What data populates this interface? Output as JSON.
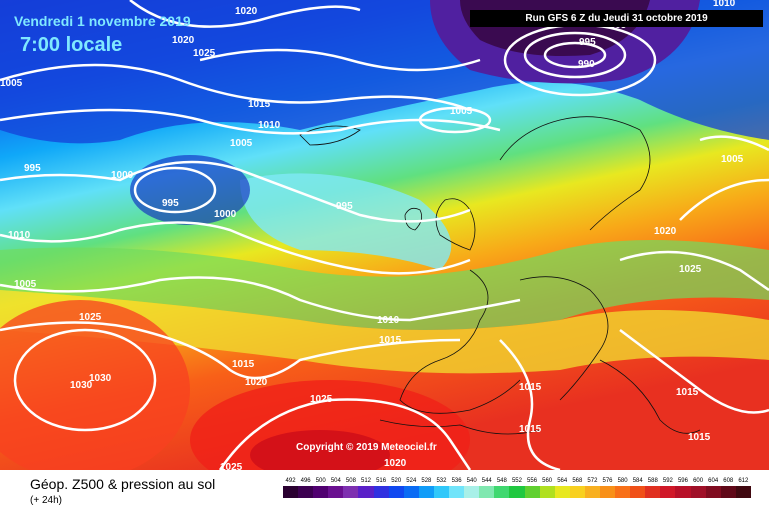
{
  "header": {
    "date": "Vendredi 1 novembre 2019",
    "time": "7:00 locale",
    "run": "Run GFS 6 Z du Jeudi 31 octobre 2019",
    "copyright": "Copyright © 2019 Meteociel.fr"
  },
  "legend": {
    "title": "Géop. Z500 & pression au sol",
    "subtitle": "(+ 24h)",
    "scale_values": [
      "492",
      "496",
      "500",
      "504",
      "508",
      "512",
      "516",
      "520",
      "524",
      "528",
      "532",
      "536",
      "540",
      "544",
      "548",
      "552",
      "556",
      "560",
      "564",
      "568",
      "572",
      "576",
      "580",
      "584",
      "588",
      "592",
      "596",
      "600",
      "604",
      "608",
      "612"
    ],
    "scale_colors": [
      "#2a0030",
      "#3c0050",
      "#500070",
      "#6a1090",
      "#7e30b0",
      "#5a20c8",
      "#3030e0",
      "#1048f0",
      "#0a6cf4",
      "#109cf8",
      "#30c8fa",
      "#70e4fa",
      "#a8f0e8",
      "#80e8b0",
      "#40d870",
      "#20c840",
      "#60d030",
      "#b0e020",
      "#e8e820",
      "#f8d020",
      "#f8b020",
      "#f89018",
      "#f87018",
      "#f05018",
      "#e03020",
      "#d01828",
      "#b81028",
      "#a01028",
      "#800c20",
      "#600818",
      "#400810"
    ]
  },
  "isobar_labels": [
    "1020",
    "1020",
    "1025",
    "1005",
    "1015",
    "1010",
    "1005",
    "995",
    "1000",
    "995",
    "1000",
    "995",
    "1010",
    "1005",
    "1025",
    "1030",
    "1030",
    "1015",
    "1020",
    "1025",
    "1025",
    "1010",
    "1015",
    "1005",
    "995",
    "990",
    "1005",
    "1020",
    "1025",
    "1015",
    "1015",
    "1015",
    "1020",
    "1010",
    "1005"
  ]
}
